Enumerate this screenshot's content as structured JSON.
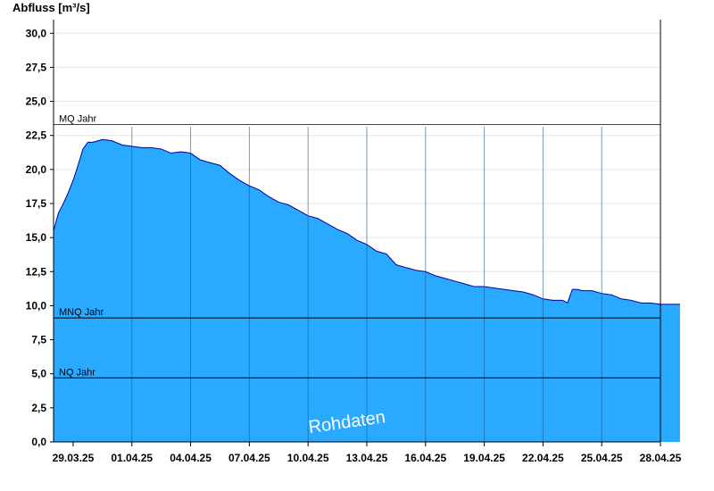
{
  "chart_data": {
    "type": "area",
    "ylabel": "Abfluss [m³/s]",
    "ylim": [
      0,
      31
    ],
    "yticks": [
      "0,0",
      "2,5",
      "5,0",
      "7,5",
      "10,0",
      "12,5",
      "15,0",
      "17,5",
      "20,0",
      "22,5",
      "25,0",
      "27,5",
      "30,0"
    ],
    "yvalues": [
      0,
      2.5,
      5,
      7.5,
      10,
      12.5,
      15,
      17.5,
      20,
      22.5,
      25,
      27.5,
      30
    ],
    "xticks": [
      "29.03.25",
      "01.04.25",
      "04.04.25",
      "07.04.25",
      "10.04.25",
      "13.04.25",
      "16.04.25",
      "19.04.25",
      "22.04.25",
      "25.04.25",
      "28.04.25"
    ],
    "xlim_days": [
      0,
      31
    ],
    "grid": true,
    "fill_color": "#29a9ff",
    "line_color": "#0000a0",
    "reference_lines": [
      {
        "label": "MQ Jahr",
        "value": 23.3,
        "color": "#007000"
      },
      {
        "label": "MNQ Jahr",
        "value": 9.1,
        "color": "#000000"
      },
      {
        "label": "NQ Jahr",
        "value": 4.7,
        "color": "#000000"
      }
    ],
    "watermark": "Rohdaten",
    "series": [
      {
        "x": [
          "28.03.25 00:00",
          "28.03.25 06:00",
          "28.03.25 12:00",
          "28.03.25 18:00",
          "29.03.25 00:00",
          "29.03.25 06:00",
          "29.03.25 12:00",
          "29.03.25 18:00",
          "30.03.25 00:00",
          "30.03.25 12:00",
          "31.03.25 00:00",
          "31.03.25 12:00",
          "01.04.25 00:00",
          "01.04.25 12:00",
          "02.04.25 00:00",
          "02.04.25 12:00",
          "03.04.25 00:00",
          "03.04.25 12:00",
          "04.04.25 00:00",
          "04.04.25 12:00",
          "05.04.25 00:00",
          "05.04.25 12:00",
          "06.04.25 00:00",
          "06.04.25 12:00",
          "07.04.25 00:00",
          "07.04.25 12:00",
          "08.04.25 00:00",
          "08.04.25 12:00",
          "09.04.25 00:00",
          "09.04.25 12:00",
          "10.04.25 00:00",
          "10.04.25 12:00",
          "11.04.25 00:00",
          "11.04.25 12:00",
          "12.04.25 00:00",
          "12.04.25 12:00",
          "13.04.25 00:00",
          "13.04.25 12:00",
          "14.04.25 00:00",
          "14.04.25 12:00",
          "15.04.25 00:00",
          "15.04.25 12:00",
          "16.04.25 00:00",
          "16.04.25 12:00",
          "17.04.25 00:00",
          "17.04.25 12:00",
          "18.04.25 00:00",
          "18.04.25 12:00",
          "19.04.25 00:00",
          "19.04.25 12:00",
          "20.04.25 00:00",
          "20.04.25 12:00",
          "21.04.25 00:00",
          "21.04.25 12:00",
          "22.04.25 00:00",
          "22.04.25 12:00",
          "23.04.25 00:00",
          "23.04.25 06:00",
          "23.04.25 12:00",
          "23.04.25 18:00",
          "24.04.25 00:00",
          "24.04.25 12:00",
          "25.04.25 00:00",
          "25.04.25 12:00",
          "26.04.25 00:00",
          "26.04.25 12:00",
          "27.04.25 00:00",
          "27.04.25 12:00",
          "28.04.25 00:00",
          "28.04.25 12:00",
          "29.04.25 00:00"
        ],
        "y": [
          15.5,
          16.8,
          17.5,
          18.3,
          19.2,
          20.3,
          21.5,
          22.0,
          22.0,
          22.2,
          22.1,
          21.8,
          21.7,
          21.6,
          21.6,
          21.5,
          21.2,
          21.3,
          21.2,
          20.7,
          20.5,
          20.3,
          19.7,
          19.2,
          18.8,
          18.5,
          18.0,
          17.6,
          17.4,
          17.0,
          16.6,
          16.4,
          16.0,
          15.6,
          15.3,
          14.8,
          14.5,
          14.0,
          13.8,
          13.0,
          12.8,
          12.6,
          12.5,
          12.2,
          12.0,
          11.8,
          11.6,
          11.4,
          11.4,
          11.3,
          11.2,
          11.1,
          11.0,
          10.8,
          10.5,
          10.4,
          10.4,
          10.2,
          11.2,
          11.2,
          11.1,
          11.1,
          10.9,
          10.8,
          10.5,
          10.4,
          10.2,
          10.2,
          10.1,
          10.1,
          10.1
        ]
      }
    ]
  }
}
